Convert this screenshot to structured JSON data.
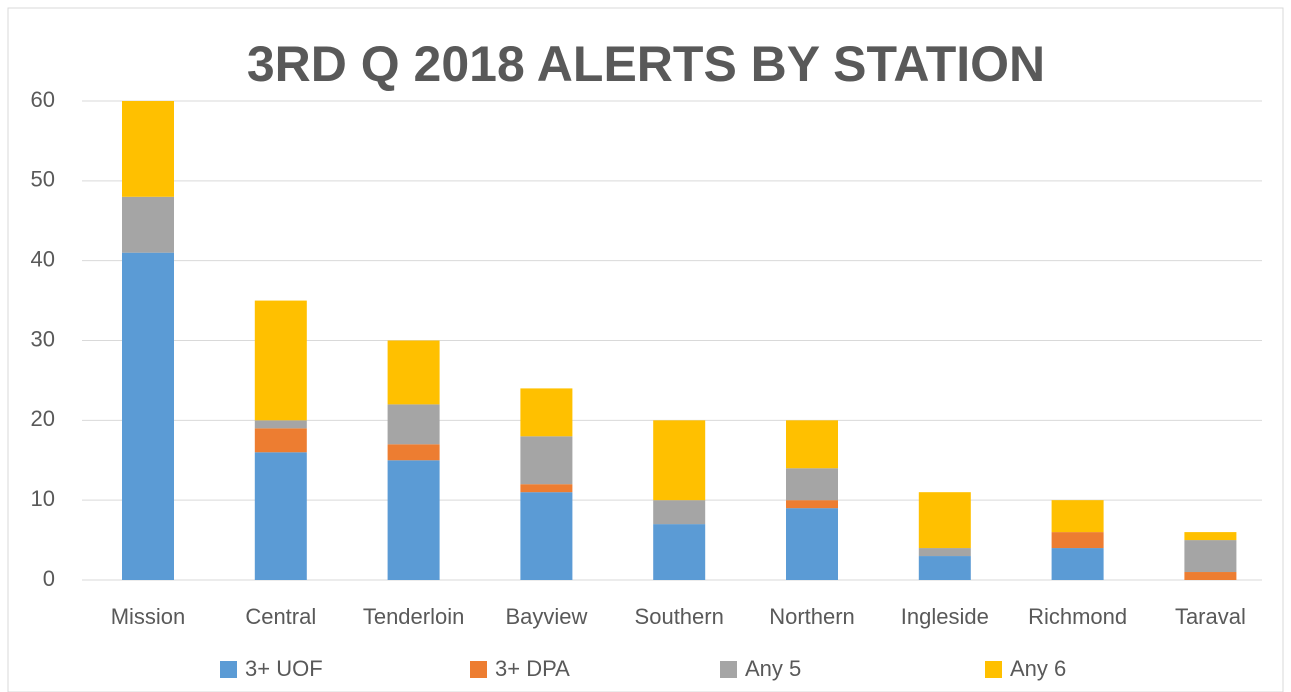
{
  "chart_data": {
    "type": "stacked_bar",
    "title": "3RD Q 2018 ALERTS BY STATION",
    "categories": [
      "Mission",
      "Central",
      "Tenderloin",
      "Bayview",
      "Southern",
      "Northern",
      "Ingleside",
      "Richmond",
      "Taraval"
    ],
    "series": [
      {
        "name": "3+ UOF",
        "color": "#5b9bd5",
        "values": [
          41,
          16,
          15,
          11,
          7,
          9,
          3,
          4,
          0
        ]
      },
      {
        "name": "3+ DPA",
        "color": "#ed7d31",
        "values": [
          0,
          3,
          2,
          1,
          0,
          1,
          0,
          2,
          1
        ]
      },
      {
        "name": "Any 5",
        "color": "#a5a5a5",
        "values": [
          7,
          1,
          5,
          6,
          3,
          4,
          1,
          0,
          4
        ]
      },
      {
        "name": "Any 6",
        "color": "#ffc000",
        "values": [
          12,
          15,
          8,
          6,
          10,
          6,
          7,
          4,
          1
        ]
      }
    ],
    "ylim": [
      0,
      60
    ],
    "yticks": [
      0,
      10,
      20,
      30,
      40,
      50,
      60
    ],
    "grid": true,
    "legend": "bottom"
  }
}
